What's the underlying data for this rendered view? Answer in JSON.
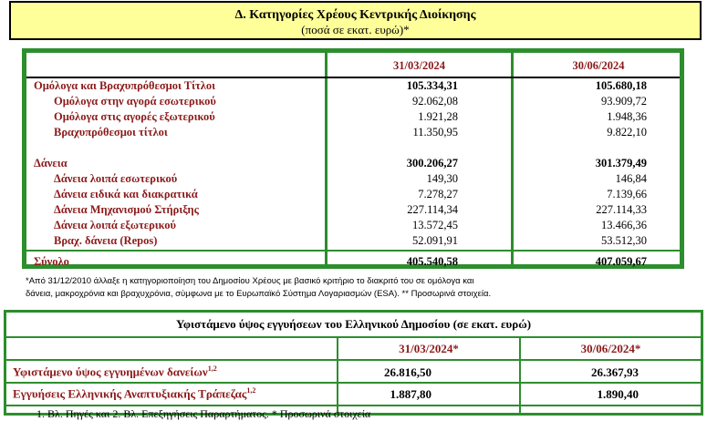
{
  "title": {
    "line1": "Δ. Κατηγορίες Χρέους Κεντρικής Διοίκησης",
    "line2": "(ποσά σε εκατ. ευρώ)*"
  },
  "debt_table": {
    "columns": [
      "31/03/2024",
      "30/06/2024"
    ],
    "rows": [
      {
        "label": "Ομόλογα και Βραχυπρόθεσμοι Τίτλοι",
        "v1": "105.334,31",
        "v2": "105.680,18",
        "bold": true,
        "indent": false
      },
      {
        "label": "Ομόλογα στην αγορά εσωτερικού",
        "v1": "92.062,08",
        "v2": "93.909,72",
        "bold": false,
        "indent": true
      },
      {
        "label": "Ομόλογα στις αγορές εξωτερικού",
        "v1": "1.921,28",
        "v2": "1.948,36",
        "bold": false,
        "indent": true
      },
      {
        "label": "Βραχυπρόθεσμοι τίτλοι",
        "v1": "11.350,95",
        "v2": "9.822,10",
        "bold": false,
        "indent": true
      },
      {
        "label": "Δάνεια",
        "v1": "300.206,27",
        "v2": "301.379,49",
        "bold": true,
        "indent": false
      },
      {
        "label": "Δάνεια λοιπά εσωτερικού",
        "v1": "149,30",
        "v2": "146,84",
        "bold": false,
        "indent": true
      },
      {
        "label": "Δάνεια ειδικά και διακρατικά",
        "v1": "7.278,27",
        "v2": "7.139,66",
        "bold": false,
        "indent": true
      },
      {
        "label": "Δάνεια Μηχανισμού Στήριξης",
        "v1": "227.114,34",
        "v2": "227.114,33",
        "bold": false,
        "indent": true
      },
      {
        "label": "Δάνεια λοιπά εξωτερικού",
        "v1": "13.572,45",
        "v2": "13.466,36",
        "bold": false,
        "indent": true
      },
      {
        "label": "Βραχ. δάνεια (Repos)",
        "v1": "52.091,91",
        "v2": "53.512,30",
        "bold": false,
        "indent": true
      }
    ],
    "total": {
      "label": "Σύνολο",
      "v1": "405.540,58",
      "v2": "407.059,67"
    }
  },
  "note": {
    "line1": "*Από 31/12/2010 άλλαξε η κατηγοριοποίηση του Δημοσίου Χρέους με βασικό κριτήριο το διακριτό του σε ομόλογα και",
    "line2": "δάνεια, μακροχρόνια και βραχυχρόνια, σύμφωνα με το Ευρωπαϊκό Σύστημα Λογαριασμών (ESA). ** Προσωρινά στοιχεία."
  },
  "guarantees": {
    "title": "Υφιστάμενο ύψος εγγυήσεων του Ελληνικού Δημοσίου (σε εκατ. ευρώ)",
    "columns": [
      "31/03/2024*",
      "30/06/2024*"
    ],
    "rows": [
      {
        "label": "Υφιστάμενο ύψος εγγυημένων δανείων",
        "sup": "1,2",
        "v1": "26.816,50",
        "v2": "26.367,93"
      },
      {
        "label": "Εγγυήσεις Ελληνικής Αναπτυξιακής Τράπεζας",
        "sup": "1,2",
        "v1": "1.887,80",
        "v2": "1.890,40"
      }
    ]
  },
  "footer_cut": "1. Βλ. Πηγές και 2. Βλ. Επεξηγήσεις Παραρτήματος. * Προσωρινά στοιχεία"
}
